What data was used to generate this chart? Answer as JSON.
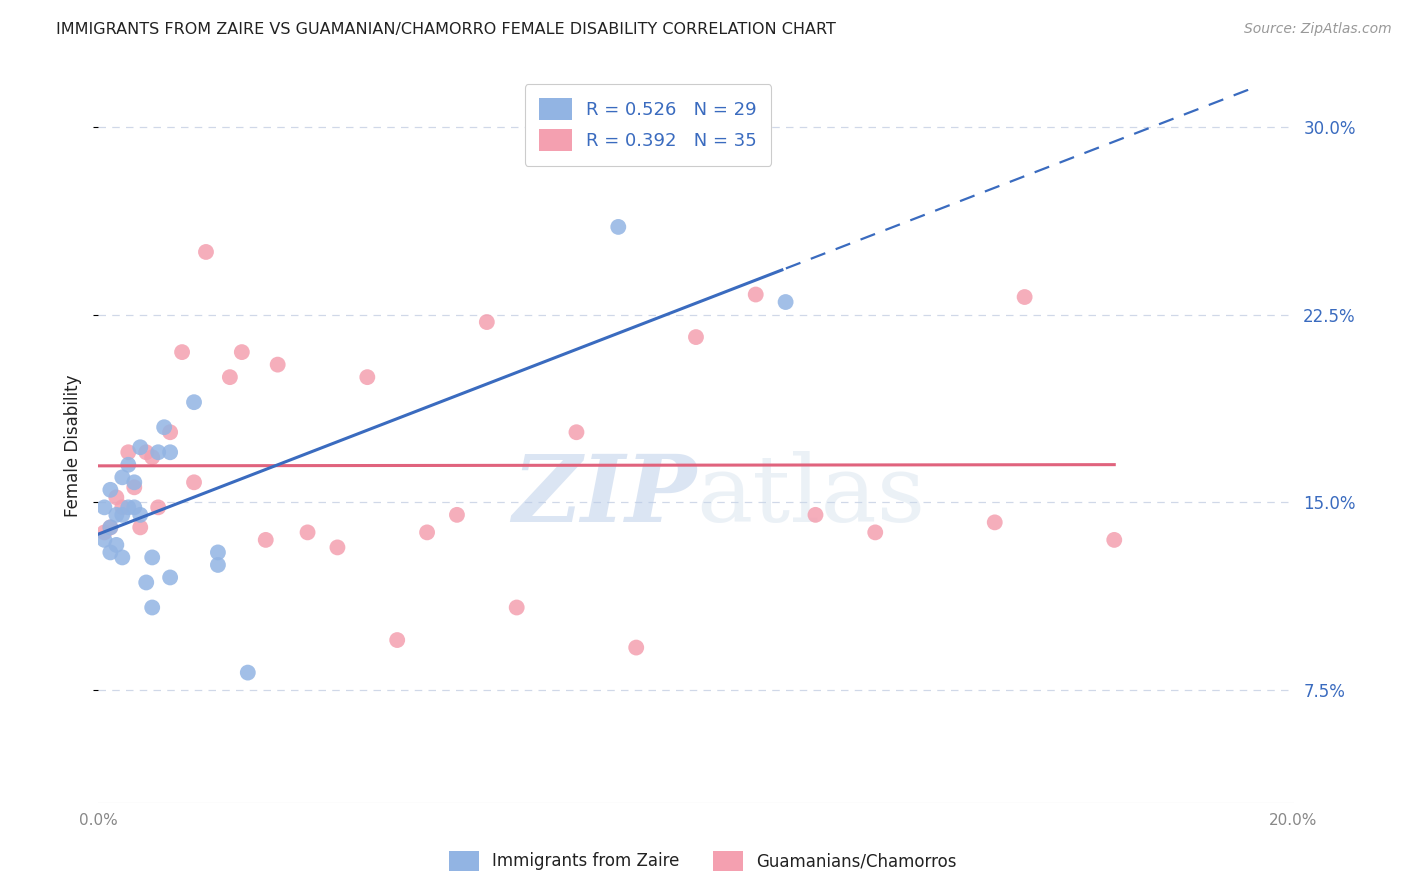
{
  "title": "IMMIGRANTS FROM ZAIRE VS GUAMANIAN/CHAMORRO FEMALE DISABILITY CORRELATION CHART",
  "source": "Source: ZipAtlas.com",
  "ylabel": "Female Disability",
  "xlim": [
    0.0,
    0.2
  ],
  "ylim": [
    0.03,
    0.315
  ],
  "blue_color": "#92b4e3",
  "pink_color": "#f4a0b0",
  "blue_line_color": "#3a6bbf",
  "pink_line_color": "#e0637d",
  "blue_R": 0.526,
  "blue_N": 29,
  "pink_R": 0.392,
  "pink_N": 35,
  "legend_label_blue": "Immigrants from Zaire",
  "legend_label_pink": "Guamanians/Chamorros",
  "blue_scatter_x": [
    0.001,
    0.001,
    0.002,
    0.002,
    0.002,
    0.003,
    0.003,
    0.004,
    0.004,
    0.004,
    0.005,
    0.005,
    0.006,
    0.006,
    0.007,
    0.007,
    0.008,
    0.009,
    0.009,
    0.01,
    0.011,
    0.012,
    0.012,
    0.016,
    0.02,
    0.02,
    0.025,
    0.087,
    0.115
  ],
  "blue_scatter_y": [
    0.135,
    0.148,
    0.13,
    0.14,
    0.155,
    0.133,
    0.145,
    0.128,
    0.145,
    0.16,
    0.148,
    0.165,
    0.158,
    0.148,
    0.145,
    0.172,
    0.118,
    0.108,
    0.128,
    0.17,
    0.18,
    0.17,
    0.12,
    0.19,
    0.125,
    0.13,
    0.082,
    0.26,
    0.23
  ],
  "pink_scatter_x": [
    0.001,
    0.002,
    0.003,
    0.004,
    0.005,
    0.006,
    0.007,
    0.008,
    0.009,
    0.01,
    0.012,
    0.014,
    0.016,
    0.018,
    0.022,
    0.024,
    0.028,
    0.03,
    0.035,
    0.04,
    0.045,
    0.05,
    0.055,
    0.06,
    0.065,
    0.07,
    0.08,
    0.09,
    0.1,
    0.11,
    0.12,
    0.13,
    0.15,
    0.155,
    0.17
  ],
  "pink_scatter_y": [
    0.138,
    0.14,
    0.152,
    0.148,
    0.17,
    0.156,
    0.14,
    0.17,
    0.168,
    0.148,
    0.178,
    0.21,
    0.158,
    0.25,
    0.2,
    0.21,
    0.135,
    0.205,
    0.138,
    0.132,
    0.2,
    0.095,
    0.138,
    0.145,
    0.222,
    0.108,
    0.178,
    0.092,
    0.216,
    0.233,
    0.145,
    0.138,
    0.142,
    0.232,
    0.135
  ],
  "background_color": "#ffffff",
  "grid_color": "#d0d8e8",
  "text_color_blue": "#3a6bbf",
  "title_color": "#222222",
  "axis_tick_color": "#888888",
  "watermark_color": "#c8d8f0",
  "watermark_alpha": 0.35
}
